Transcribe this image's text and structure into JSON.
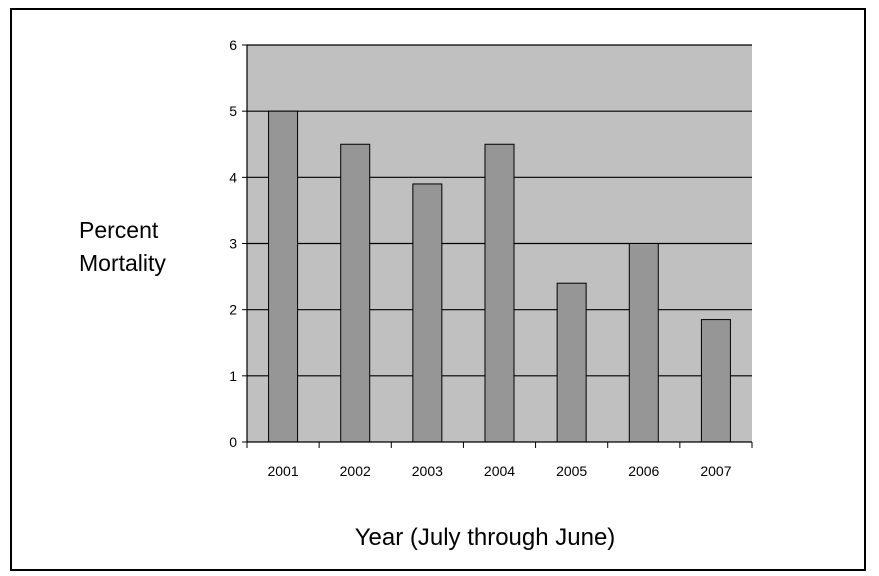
{
  "chart_data": {
    "type": "bar",
    "title": "",
    "xlabel": "Year (July through June)",
    "ylabel_lines": [
      "Percent",
      "Mortality"
    ],
    "categories": [
      "2001",
      "2002",
      "2003",
      "2004",
      "2005",
      "2006",
      "2007"
    ],
    "values": [
      5.0,
      4.5,
      3.9,
      4.5,
      2.4,
      3.0,
      1.85
    ],
    "ylim": [
      0,
      6
    ],
    "yticks": [
      "0",
      "1",
      "2",
      "3",
      "4",
      "5",
      "6"
    ],
    "grid": true,
    "legend": "none",
    "colors": {
      "plot_background": "#c0c0c0",
      "bar_fill": "#969696",
      "bar_stroke": "#000000",
      "gridline": "#000000"
    }
  }
}
